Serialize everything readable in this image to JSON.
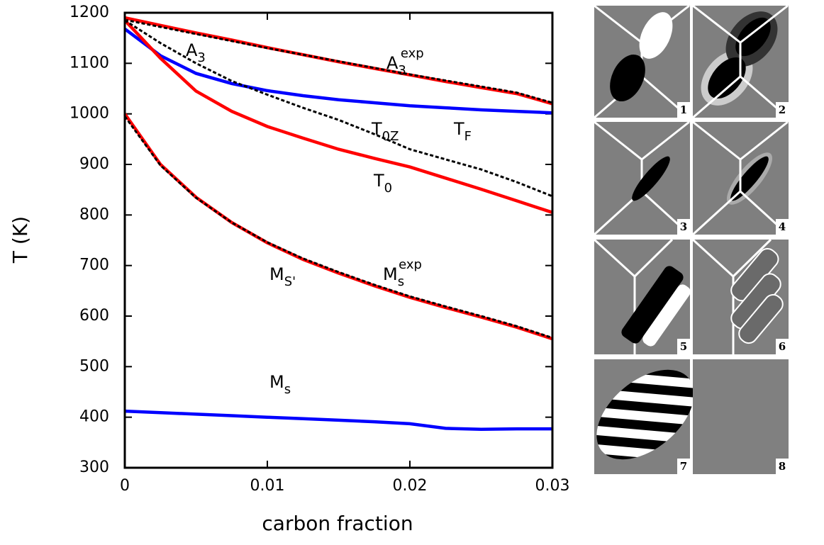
{
  "chart_data": {
    "type": "line",
    "xlabel": "carbon fraction",
    "ylabel": "T (K)",
    "x": [
      0,
      0.0025,
      0.005,
      0.0075,
      0.01,
      0.0125,
      0.015,
      0.0175,
      0.02,
      0.0225,
      0.025,
      0.0275,
      0.03
    ],
    "xlim": [
      0,
      0.03
    ],
    "xticks": [
      0,
      0.01,
      0.02,
      0.03
    ],
    "ylim": [
      300,
      1200
    ],
    "yticks": [
      300,
      400,
      500,
      600,
      700,
      800,
      900,
      1000,
      1100,
      1200
    ],
    "series": [
      {
        "color": "#ff0000",
        "style": "solid",
        "values": [
          1190,
          1175,
          1160,
          1146,
          1131,
          1117,
          1103,
          1090,
          1077,
          1064,
          1052,
          1040,
          1020
        ]
      },
      {
        "color": "#000000",
        "style": "dotted",
        "values": [
          1186,
          1172,
          1158,
          1144,
          1130,
          1117,
          1104,
          1091,
          1078,
          1066,
          1054,
          1042,
          1022
        ]
      },
      {
        "color": "#0000ff",
        "style": "solid",
        "values": [
          1168,
          1115,
          1080,
          1060,
          1046,
          1036,
          1028,
          1022,
          1016,
          1012,
          1008,
          1005,
          1002
        ]
      },
      {
        "color": "#ff0000",
        "style": "solid",
        "values": [
          1185,
          1110,
          1045,
          1005,
          975,
          952,
          930,
          912,
          895,
          873,
          851,
          828,
          805
        ]
      },
      {
        "color": "#000000",
        "style": "dotted",
        "values": [
          1185,
          1140,
          1100,
          1065,
          1038,
          1012,
          988,
          960,
          930,
          910,
          890,
          865,
          837
        ]
      },
      {
        "color": "#ff0000",
        "style": "solid",
        "values": [
          1000,
          900,
          835,
          785,
          745,
          712,
          685,
          660,
          637,
          617,
          598,
          578,
          555
        ]
      },
      {
        "color": "#000000",
        "style": "dotted",
        "values": [
          995,
          898,
          834,
          785,
          746,
          714,
          687,
          662,
          639,
          619,
          600,
          580,
          557
        ]
      },
      {
        "color": "#0000ff",
        "style": "solid",
        "values": [
          412,
          409,
          406,
          403,
          400,
          397,
          394,
          391,
          387,
          378,
          376,
          377,
          377
        ]
      }
    ],
    "annotations": [
      {
        "base": "A",
        "sub": "3",
        "sup": "exp"
      },
      {
        "base": "A",
        "sub": "3"
      },
      {
        "base": "T",
        "sub": "F"
      },
      {
        "base": "T",
        "sub": "0Z"
      },
      {
        "base": "T",
        "sub": "0"
      },
      {
        "base": "M",
        "sub": "S'"
      },
      {
        "base": "M",
        "sub": "s",
        "sup": "exp"
      },
      {
        "base": "M",
        "sub": "s"
      }
    ]
  },
  "panels": [
    "1",
    "2",
    "3",
    "4",
    "5",
    "6",
    "7",
    "8"
  ]
}
